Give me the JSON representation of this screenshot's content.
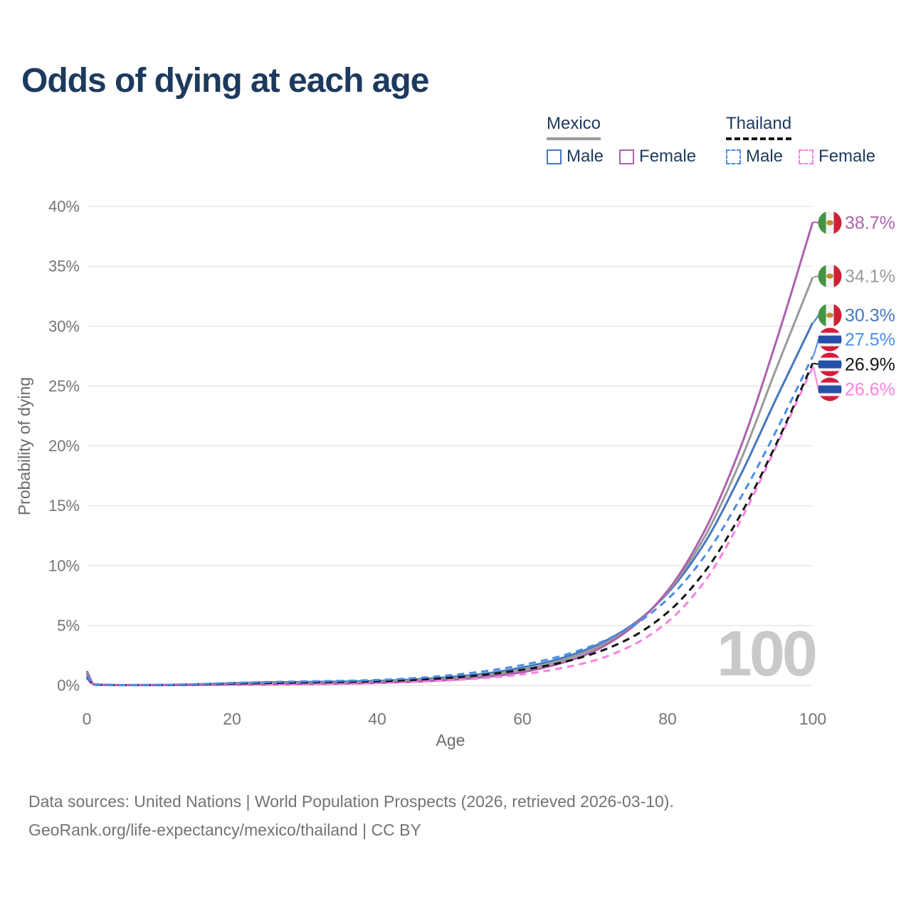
{
  "title": "Odds of dying at each age",
  "watermark": "100",
  "legend": {
    "groups": [
      {
        "name": "Mexico",
        "line_style": "solid",
        "underline_color": "#9a9a9a",
        "items": [
          {
            "label": "Male",
            "color": "#4678bd"
          },
          {
            "label": "Female",
            "color": "#ac62ae"
          }
        ]
      },
      {
        "name": "Thailand",
        "line_style": "dashed",
        "underline_color": "#141414",
        "items": [
          {
            "label": "Male",
            "color": "#4a8de8"
          },
          {
            "label": "Female",
            "color": "#fb80e2"
          }
        ]
      }
    ]
  },
  "source": {
    "line1": "Data sources: United Nations | World Population Prospects (2026, retrieved 2026-03-10).",
    "line2": "GeoRank.org/life-expectancy/mexico/thailand | CC BY"
  },
  "chart_data": {
    "type": "line",
    "title": "Odds of dying at each age",
    "xlabel": "Age",
    "ylabel": "Probability of dying",
    "xlim": [
      0,
      100
    ],
    "ylim": [
      0,
      40
    ],
    "x_ticks": [
      0,
      20,
      40,
      60,
      80,
      100
    ],
    "y_ticks": [
      "0%",
      "5%",
      "10%",
      "15%",
      "20%",
      "25%",
      "30%",
      "35%",
      "40%"
    ],
    "grid": "horizontal",
    "legend_position": "top-right",
    "x": [
      0,
      1,
      5,
      10,
      15,
      20,
      25,
      30,
      35,
      40,
      45,
      50,
      55,
      60,
      65,
      70,
      75,
      80,
      85,
      90,
      95,
      100
    ],
    "series": [
      {
        "id": "mexico_male",
        "name": "Mexico Male",
        "country": "Mexico",
        "sex": "Male",
        "color": "#4678bd",
        "dashed": false,
        "flag": "mx",
        "end_label": "30.3%",
        "end_value": 30.3,
        "values": [
          1.2,
          0.09,
          0.03,
          0.04,
          0.09,
          0.18,
          0.25,
          0.28,
          0.32,
          0.38,
          0.5,
          0.7,
          1.0,
          1.5,
          2.2,
          3.3,
          5.0,
          7.7,
          11.8,
          17.5,
          24.0,
          30.3
        ]
      },
      {
        "id": "mexico_all",
        "name": "Mexico Both sexes",
        "country": "Mexico",
        "sex": "Both",
        "color": "#9a9a9a",
        "dashed": false,
        "flag": "mx",
        "end_label": "34.1%",
        "end_value": 34.1,
        "values": [
          1.1,
          0.08,
          0.03,
          0.03,
          0.06,
          0.12,
          0.17,
          0.19,
          0.23,
          0.29,
          0.4,
          0.57,
          0.85,
          1.3,
          2.0,
          3.1,
          4.9,
          7.8,
          12.3,
          18.7,
          26.5,
          34.1
        ]
      },
      {
        "id": "mexico_female",
        "name": "Mexico Female",
        "country": "Mexico",
        "sex": "Female",
        "color": "#ac62ae",
        "dashed": false,
        "flag": "mx",
        "end_label": "38.7%",
        "end_value": 38.7,
        "values": [
          1.0,
          0.07,
          0.02,
          0.02,
          0.04,
          0.06,
          0.08,
          0.1,
          0.14,
          0.2,
          0.3,
          0.45,
          0.7,
          1.1,
          1.8,
          2.9,
          4.8,
          7.9,
          12.8,
          19.8,
          28.8,
          38.7
        ]
      },
      {
        "id": "thailand_female",
        "name": "Thailand Female",
        "country": "Thailand",
        "sex": "Female",
        "color": "#fb80e2",
        "dashed": true,
        "flag": "th",
        "end_label": "26.6%",
        "end_value": 26.6,
        "values": [
          0.6,
          0.05,
          0.02,
          0.03,
          0.05,
          0.07,
          0.1,
          0.13,
          0.17,
          0.22,
          0.3,
          0.43,
          0.62,
          0.92,
          1.4,
          2.1,
          3.3,
          5.3,
          8.6,
          13.7,
          20.0,
          26.6
        ]
      },
      {
        "id": "thailand_all",
        "name": "Thailand Both sexes",
        "country": "Thailand",
        "sex": "Both",
        "color": "#141414",
        "dashed": true,
        "flag": "th",
        "end_label": "26.9%",
        "end_value": 26.9,
        "values": [
          0.7,
          0.05,
          0.03,
          0.03,
          0.07,
          0.14,
          0.2,
          0.24,
          0.28,
          0.33,
          0.45,
          0.63,
          0.9,
          1.3,
          1.85,
          2.7,
          4.0,
          6.1,
          9.4,
          14.2,
          20.2,
          26.9
        ]
      },
      {
        "id": "thailand_male",
        "name": "Thailand Male",
        "country": "Thailand",
        "sex": "Male",
        "color": "#4a8de8",
        "dashed": true,
        "flag": "th",
        "end_label": "27.5%",
        "end_value": 27.5,
        "values": [
          0.8,
          0.06,
          0.03,
          0.04,
          0.1,
          0.2,
          0.28,
          0.33,
          0.38,
          0.45,
          0.6,
          0.85,
          1.2,
          1.7,
          2.4,
          3.4,
          4.9,
          7.2,
          10.7,
          15.6,
          21.3,
          27.5
        ]
      }
    ],
    "flag_colors": {
      "mexico_green": "#449444",
      "mexico_white": "#f4f4f4",
      "mexico_red": "#cd2234",
      "mexico_emblem": "#c08a2e",
      "thailand_red": "#d51c3c",
      "thailand_white": "#f4f4f4",
      "thailand_blue": "#2350a8"
    }
  }
}
